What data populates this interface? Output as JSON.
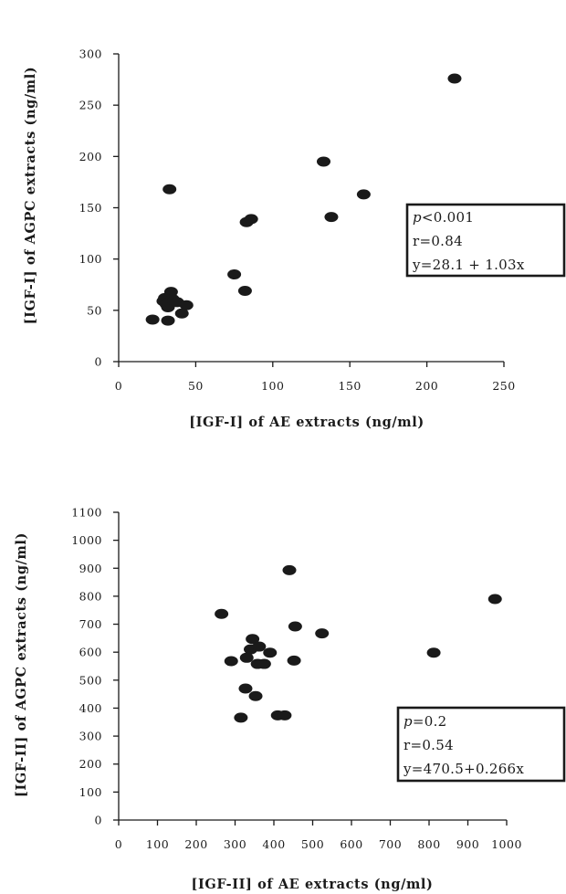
{
  "chart_data": [
    {
      "type": "scatter",
      "title": "",
      "xlabel": "[IGF-I] of AE extracts (ng/ml)",
      "ylabel": "[IGF-I] of AGPC extracts (ng/ml)",
      "xlim": [
        0,
        250
      ],
      "ylim": [
        0,
        300
      ],
      "xticks": [
        "0",
        "50",
        "100",
        "150",
        "200",
        "250"
      ],
      "yticks": [
        "0",
        "50",
        "100",
        "150",
        "200",
        "250",
        "300"
      ],
      "grid": false,
      "stats": {
        "p_symbol": "p",
        "p_value": "<0.001",
        "r": "r=0.84",
        "equation": "y=28.1 + 1.03x"
      },
      "points": [
        {
          "x": 22,
          "y": 41
        },
        {
          "x": 29,
          "y": 59
        },
        {
          "x": 30,
          "y": 62
        },
        {
          "x": 31,
          "y": 56
        },
        {
          "x": 32,
          "y": 53
        },
        {
          "x": 33,
          "y": 58
        },
        {
          "x": 34,
          "y": 68
        },
        {
          "x": 35,
          "y": 61
        },
        {
          "x": 36,
          "y": 59
        },
        {
          "x": 38,
          "y": 58
        },
        {
          "x": 41,
          "y": 47
        },
        {
          "x": 44,
          "y": 55
        },
        {
          "x": 32,
          "y": 40
        },
        {
          "x": 33,
          "y": 168
        },
        {
          "x": 75,
          "y": 85
        },
        {
          "x": 82,
          "y": 69
        },
        {
          "x": 83,
          "y": 136
        },
        {
          "x": 86,
          "y": 139
        },
        {
          "x": 133,
          "y": 195
        },
        {
          "x": 138,
          "y": 141
        },
        {
          "x": 159,
          "y": 163
        },
        {
          "x": 218,
          "y": 276
        }
      ]
    },
    {
      "type": "scatter",
      "title": "",
      "xlabel": "[IGF-II] of AE extracts (ng/ml)",
      "ylabel": "[IGF-II] of AGPC extracts (ng/ml)",
      "xlim": [
        0,
        1000
      ],
      "ylim": [
        0,
        1100
      ],
      "xticks": [
        "0",
        "100",
        "200",
        "300",
        "400",
        "500",
        "600",
        "700",
        "800",
        "900",
        "1000"
      ],
      "yticks": [
        "0",
        "100",
        "200",
        "300",
        "400",
        "500",
        "600",
        "700",
        "800",
        "900",
        "1000",
        "1100"
      ],
      "grid": false,
      "stats": {
        "p_symbol": "p",
        "p_value": "=0.2",
        "r": "r=0.54",
        "equation": "y=470.5+0.266x"
      },
      "points": [
        {
          "x": 265,
          "y": 737
        },
        {
          "x": 290,
          "y": 568
        },
        {
          "x": 315,
          "y": 366
        },
        {
          "x": 327,
          "y": 470
        },
        {
          "x": 330,
          "y": 580
        },
        {
          "x": 340,
          "y": 610
        },
        {
          "x": 345,
          "y": 647
        },
        {
          "x": 353,
          "y": 443
        },
        {
          "x": 358,
          "y": 558
        },
        {
          "x": 362,
          "y": 620
        },
        {
          "x": 375,
          "y": 558
        },
        {
          "x": 390,
          "y": 598
        },
        {
          "x": 410,
          "y": 374
        },
        {
          "x": 428,
          "y": 374
        },
        {
          "x": 440,
          "y": 893
        },
        {
          "x": 452,
          "y": 570
        },
        {
          "x": 455,
          "y": 692
        },
        {
          "x": 524,
          "y": 667
        },
        {
          "x": 812,
          "y": 598
        },
        {
          "x": 970,
          "y": 790
        }
      ]
    }
  ]
}
